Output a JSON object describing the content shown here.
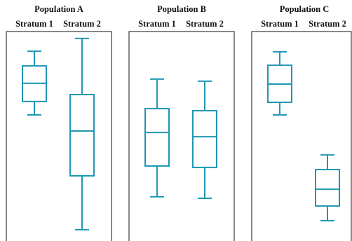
{
  "chart_data": [
    {
      "type": "box",
      "title": "Population A",
      "categories": [
        "Stratum 1",
        "Stratum 2"
      ],
      "color": "#1f97b3",
      "ylim": [
        0,
        100
      ],
      "boxes": [
        {
          "min": 60.2,
          "q1": 66.6,
          "median": 75.3,
          "q3": 83.6,
          "max": 90.6
        },
        {
          "min": 5.4,
          "q1": 31.1,
          "median": 52.5,
          "q3": 69.9,
          "max": 96.7
        }
      ]
    },
    {
      "type": "box",
      "title": "Population B",
      "categories": [
        "Stratum 1",
        "Stratum 2"
      ],
      "color": "#1f97b3",
      "ylim": [
        0,
        100
      ],
      "boxes": [
        {
          "min": 21.1,
          "q1": 35.8,
          "median": 51.8,
          "q3": 63.2,
          "max": 77.3
        },
        {
          "min": 20.4,
          "q1": 35.1,
          "median": 49.8,
          "q3": 62.2,
          "max": 76.3
        }
      ]
    },
    {
      "type": "box",
      "title": "Population C",
      "categories": [
        "Stratum 1",
        "Stratum 2"
      ],
      "color": "#1f97b3",
      "ylim": [
        0,
        100
      ],
      "boxes": [
        {
          "min": 60.2,
          "q1": 66.2,
          "median": 74.9,
          "q3": 83.9,
          "max": 90.3
        },
        {
          "min": 9.7,
          "q1": 16.7,
          "median": 24.7,
          "q3": 34.1,
          "max": 41.1
        }
      ]
    }
  ]
}
